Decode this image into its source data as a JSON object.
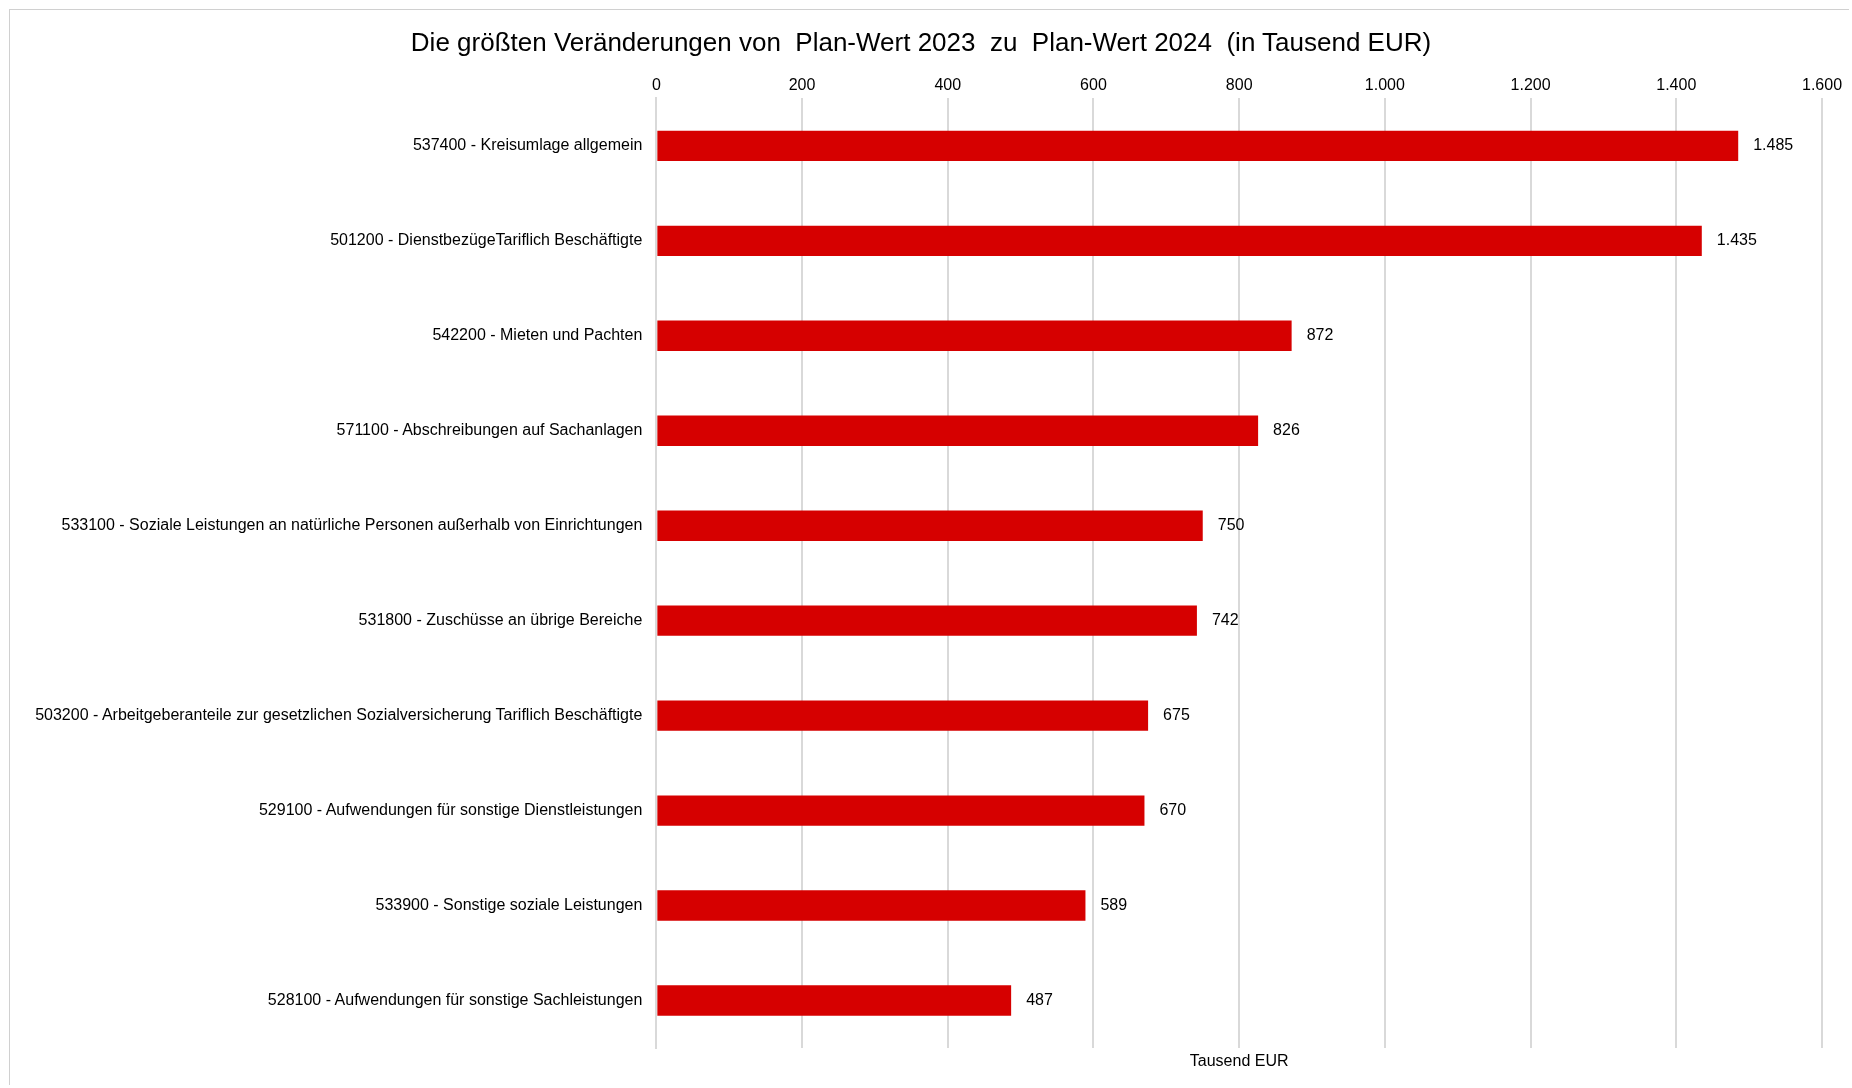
{
  "chart_data": {
    "type": "bar",
    "orientation": "horizontal",
    "title": "Die größten Veränderungen von  Plan-Wert 2023  zu  Plan-Wert 2024  (in Tausend EUR)",
    "xlabel": "Tausend EUR",
    "categories": [
      "537400 - Kreisumlage allgemein",
      "501200 - DienstbezügeTariflich Beschäftigte",
      "542200 - Mieten und Pachten",
      "571100 - Abschreibungen auf Sachanlagen",
      "533100 - Soziale Leistungen an natürliche Personen außerhalb von Einrichtungen",
      "531800 - Zuschüsse an übrige Bereiche",
      "503200 - Arbeitgeberanteile zur gesetzlichen Sozialversicherung Tariflich Beschäftigte",
      "529100 - Aufwendungen für sonstige Dienstleistungen",
      "533900 - Sonstige soziale Leistungen",
      "528100 - Aufwendungen für sonstige Sachleistungen"
    ],
    "values": [
      1485,
      1435,
      872,
      826,
      750,
      742,
      675,
      670,
      589,
      487
    ],
    "value_labels": [
      "1.485",
      "1.435",
      "872",
      "826",
      "750",
      "742",
      "675",
      "670",
      "589",
      "487"
    ],
    "color": "#d60000",
    "xlim": [
      0,
      1600
    ],
    "xticks": [
      0,
      200,
      400,
      600,
      800,
      {
        "value": 1000,
        "label": "1.000"
      },
      {
        "value": 1200,
        "label": "1.200"
      },
      {
        "value": 1400,
        "label": "1.400"
      },
      {
        "value": 1600,
        "label": "1.600"
      }
    ],
    "grid": "x",
    "legend": false
  }
}
